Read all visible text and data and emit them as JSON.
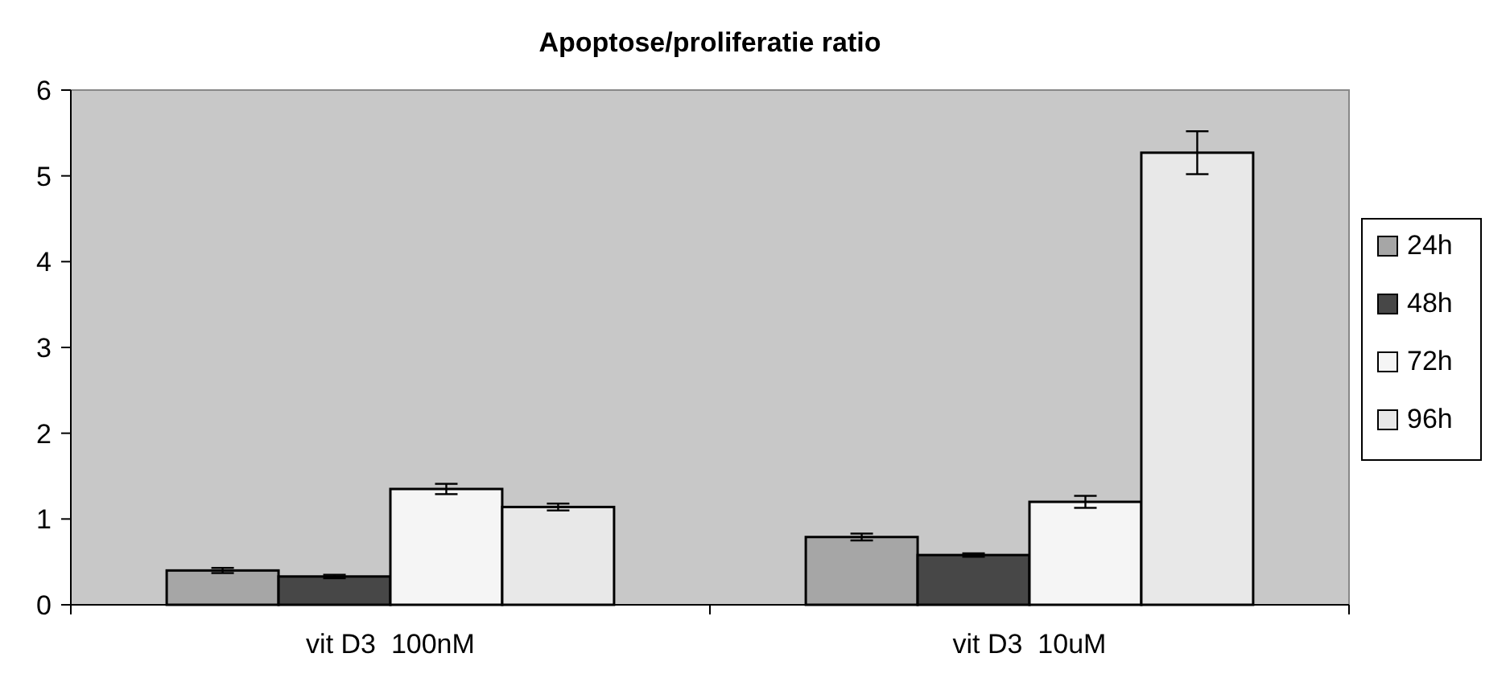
{
  "chart_data": {
    "type": "bar",
    "title": "Apoptose/proliferatie ratio",
    "categories": [
      "vit D3  100nM",
      "vit D3  10uM"
    ],
    "series": [
      {
        "name": "24h",
        "color": "#a6a6a6",
        "values": [
          0.4,
          0.79
        ],
        "errors": [
          0.03,
          0.04
        ]
      },
      {
        "name": "48h",
        "color": "#474747",
        "values": [
          0.33,
          0.58
        ],
        "errors": [
          0.02,
          0.02
        ]
      },
      {
        "name": "72h",
        "color": "#f5f5f5",
        "values": [
          1.35,
          1.2
        ],
        "errors": [
          0.06,
          0.07
        ]
      },
      {
        "name": "96h",
        "color": "#e8e8e8",
        "values": [
          1.14,
          5.27
        ],
        "errors": [
          0.04,
          0.25
        ]
      }
    ],
    "ylim": [
      0,
      6
    ],
    "yticks": [
      0,
      1,
      2,
      3,
      4,
      5,
      6
    ],
    "grid": false,
    "legend": "right"
  }
}
